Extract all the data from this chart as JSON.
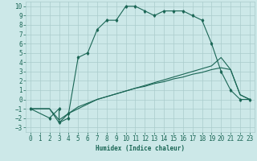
{
  "xlabel": "Humidex (Indice chaleur)",
  "bg_color": "#cce8e8",
  "grid_color": "#aacccc",
  "line_color": "#1a6655",
  "xlim": [
    -0.5,
    23.5
  ],
  "ylim": [
    -3.5,
    10.5
  ],
  "xticks": [
    0,
    1,
    2,
    3,
    4,
    5,
    6,
    7,
    8,
    9,
    10,
    11,
    12,
    13,
    14,
    15,
    16,
    17,
    18,
    19,
    20,
    21,
    22,
    23
  ],
  "yticks": [
    -3,
    -2,
    -1,
    0,
    1,
    2,
    3,
    4,
    5,
    6,
    7,
    8,
    9,
    10
  ],
  "curve1_x": [
    0,
    2,
    3,
    3,
    4,
    4,
    5,
    6,
    7,
    8,
    9,
    10,
    11,
    12,
    13,
    14,
    15,
    16,
    17,
    18,
    19,
    20,
    21,
    22,
    23
  ],
  "curve1_y": [
    -1,
    -2,
    -1,
    -2.5,
    -2,
    -1.5,
    4.5,
    5,
    7.5,
    8.5,
    8.5,
    10,
    10,
    9.5,
    9,
    9.5,
    9.5,
    9.5,
    9,
    8.5,
    6,
    3,
    1,
    0,
    0
  ],
  "curve2_x": [
    0,
    2,
    3,
    4,
    5,
    6,
    7,
    8,
    9,
    10,
    11,
    12,
    13,
    14,
    15,
    16,
    17,
    18,
    19,
    20,
    21,
    22,
    23
  ],
  "curve2_y": [
    -1,
    -1,
    -2.5,
    -1.5,
    -1,
    -0.5,
    0,
    0.3,
    0.6,
    0.9,
    1.2,
    1.5,
    1.8,
    2.1,
    2.4,
    2.7,
    3.0,
    3.3,
    3.6,
    4.5,
    3.2,
    0.5,
    0
  ],
  "curve3_x": [
    0,
    2,
    3,
    4,
    5,
    6,
    7,
    8,
    9,
    10,
    11,
    12,
    13,
    14,
    15,
    16,
    17,
    18,
    19,
    20,
    21,
    22,
    23
  ],
  "curve3_y": [
    -1,
    -1,
    -2.2,
    -1.5,
    -0.8,
    -0.4,
    0.0,
    0.3,
    0.6,
    0.9,
    1.2,
    1.4,
    1.7,
    1.9,
    2.2,
    2.4,
    2.7,
    2.9,
    3.2,
    3.4,
    3.2,
    0.5,
    0
  ],
  "marker": "d",
  "markersize": 1.8,
  "linewidth": 0.8,
  "font_size": 5.5
}
